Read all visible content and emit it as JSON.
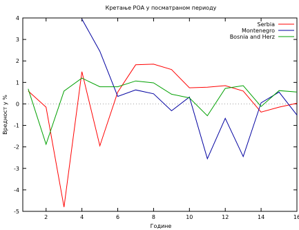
{
  "chart_data": {
    "type": "line",
    "title": "Кретање РОА у посматраном периоду",
    "xlabel": "Године",
    "ylabel": "Вредност у %",
    "xlim": [
      0.7,
      16
    ],
    "ylim": [
      -5,
      4
    ],
    "xticks": [
      2,
      4,
      6,
      8,
      10,
      12,
      14,
      16
    ],
    "yticks": [
      -5,
      -4,
      -3,
      -2,
      -1,
      0,
      1,
      2,
      3,
      4
    ],
    "grid": false,
    "zero_line": "dotted",
    "legend_position": "top-right",
    "x": [
      1,
      2,
      3,
      4,
      5,
      6,
      7,
      8,
      9,
      10,
      11,
      12,
      13,
      14,
      15,
      16
    ],
    "series": [
      {
        "name": "Serbia",
        "color": "#ff0000",
        "values": [
          0.6,
          -0.15,
          -4.8,
          1.5,
          -1.95,
          0.55,
          1.82,
          1.85,
          1.6,
          0.75,
          0.78,
          0.85,
          0.6,
          -0.38,
          -0.15,
          0.03
        ]
      },
      {
        "name": "Montenegro",
        "color": "#0000a0",
        "values": [
          null,
          null,
          null,
          3.95,
          2.45,
          0.35,
          0.65,
          0.47,
          -0.32,
          0.32,
          -2.55,
          -0.67,
          -2.45,
          0.05,
          0.55,
          -0.52
        ]
      },
      {
        "name": "Bosnia and Herz",
        "color": "#00a000",
        "values": [
          0.7,
          -1.88,
          0.6,
          1.2,
          0.8,
          0.8,
          1.07,
          0.98,
          0.45,
          0.28,
          -0.55,
          0.72,
          0.85,
          -0.12,
          0.62,
          0.55
        ]
      }
    ]
  }
}
